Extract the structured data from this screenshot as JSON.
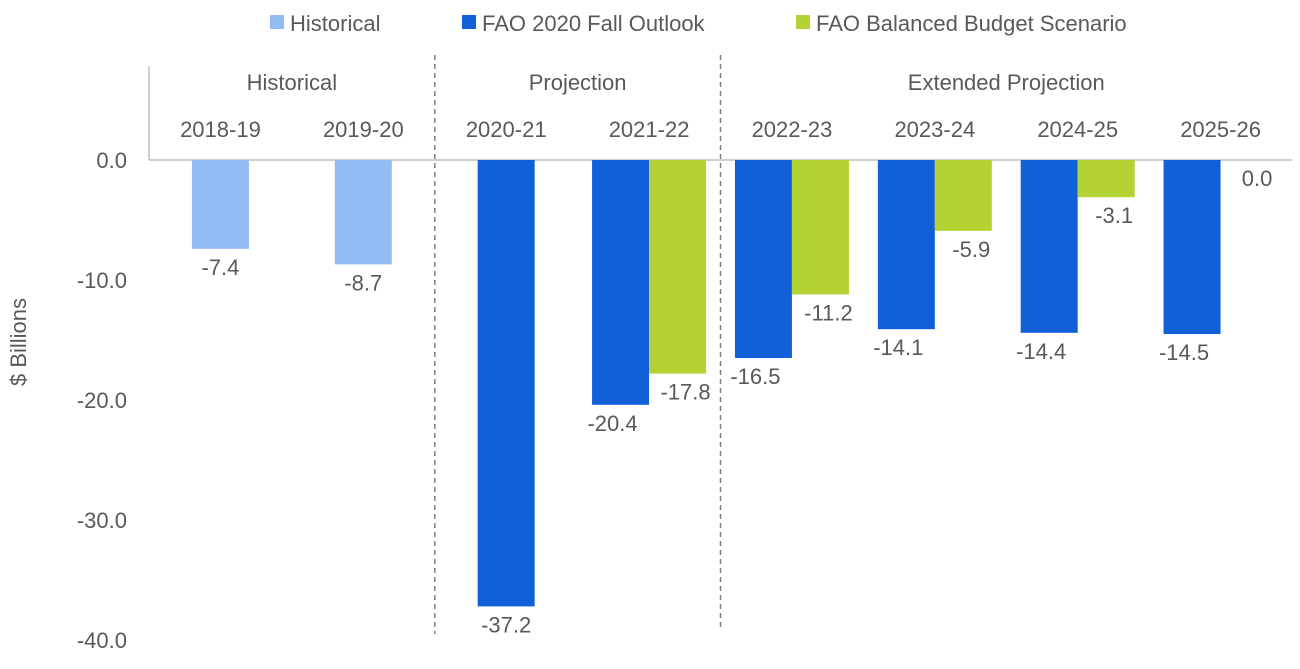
{
  "legend": [
    {
      "label": "Historical",
      "color": "#93bcf5"
    },
    {
      "label": "FAO 2020 Fall Outlook",
      "color": "#1160d8"
    },
    {
      "label": "FAO Balanced Budget Scenario",
      "color": "#b3d234"
    }
  ],
  "chart_data": {
    "type": "bar",
    "ylabel": "$ Billions",
    "ylim": [
      -40,
      0
    ],
    "yticks": [
      "0.0",
      "-10.0",
      "-20.0",
      "-30.0",
      "-40.0"
    ],
    "ytick_values": [
      0,
      -10,
      -20,
      -30,
      -40
    ],
    "categories": [
      "2018-19",
      "2019-20",
      "2020-21",
      "2021-22",
      "2022-23",
      "2023-24",
      "2024-25",
      "2025-26"
    ],
    "groups": [
      {
        "label": "Historical",
        "categories": [
          "2018-19",
          "2019-20"
        ]
      },
      {
        "label": "Projection",
        "categories": [
          "2020-21",
          "2021-22"
        ]
      },
      {
        "label": "Extended Projection",
        "categories": [
          "2022-23",
          "2023-24",
          "2024-25",
          "2025-26"
        ]
      }
    ],
    "series": [
      {
        "name": "Historical",
        "color": "#93bcf5",
        "values": [
          -7.4,
          -8.7,
          null,
          null,
          null,
          null,
          null,
          null
        ],
        "labels": [
          "-7.4",
          "-8.7",
          null,
          null,
          null,
          null,
          null,
          null
        ]
      },
      {
        "name": "FAO 2020 Fall Outlook",
        "color": "#1160d8",
        "values": [
          null,
          null,
          -37.2,
          -20.4,
          -16.5,
          -14.1,
          -14.4,
          -14.5
        ],
        "labels": [
          null,
          null,
          "-37.2",
          "-20.4",
          "-16.5",
          "-14.1",
          "-14.4",
          "-14.5"
        ]
      },
      {
        "name": "FAO Balanced Budget Scenario",
        "color": "#b3d234",
        "values": [
          null,
          null,
          null,
          -17.8,
          -11.2,
          -5.9,
          -3.1,
          0.0
        ],
        "labels": [
          null,
          null,
          null,
          "-17.8",
          "-11.2",
          "-5.9",
          "-3.1",
          "0.0"
        ]
      }
    ]
  }
}
